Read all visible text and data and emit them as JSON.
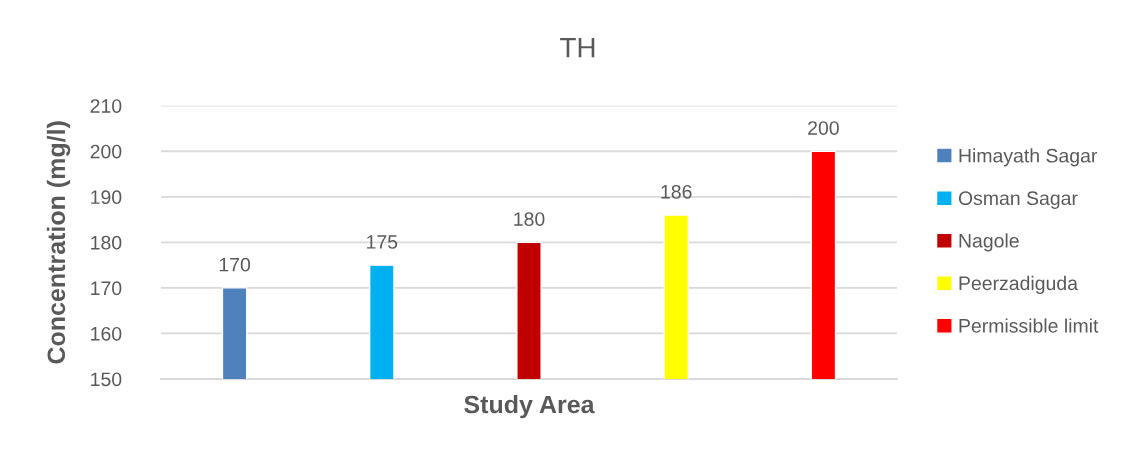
{
  "chart_data": {
    "type": "bar",
    "title": "TH",
    "xlabel": "Study Area",
    "ylabel": "Concentration (mg/l)",
    "categories": [
      null
    ],
    "series": [
      {
        "name": "Himayath Sagar",
        "color": "#4f81bd",
        "values": [
          170
        ]
      },
      {
        "name": "Osman Sagar",
        "color": "#00b0f0",
        "values": [
          175
        ]
      },
      {
        "name": "Nagole",
        "color": "#c00000",
        "values": [
          180
        ]
      },
      {
        "name": "Peerzadiguda",
        "color": "#ffff00",
        "values": [
          186
        ]
      },
      {
        "name": "Permissible limit",
        "color": "#ff0000",
        "values": [
          200
        ]
      }
    ],
    "ylim": [
      150,
      210
    ],
    "yticks": [
      150,
      160,
      170,
      180,
      190,
      200,
      210
    ],
    "grid": "y",
    "legend": "right",
    "data_labels": true
  }
}
